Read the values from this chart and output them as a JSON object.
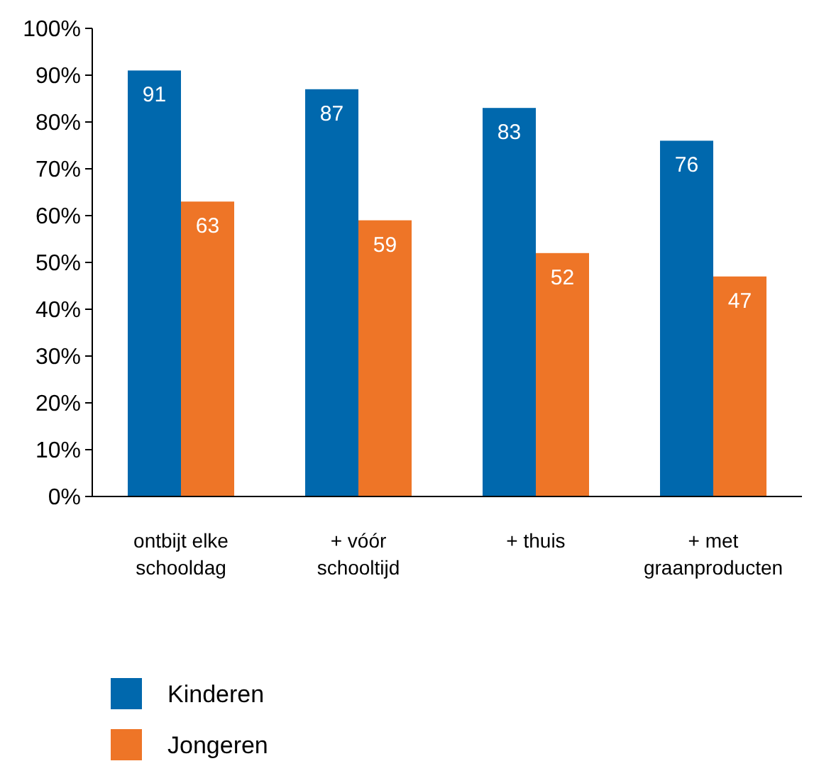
{
  "chart_data": {
    "type": "bar",
    "categories": [
      "ontbijt elke schooldag",
      "+ vóór schooltijd",
      "+ thuis",
      "+ met graanproducten"
    ],
    "series": [
      {
        "name": "Kinderen",
        "color": "#0068ad",
        "values": [
          91,
          87,
          83,
          76
        ]
      },
      {
        "name": "Jongeren",
        "color": "#ee7527",
        "values": [
          63,
          59,
          52,
          47
        ]
      }
    ],
    "ylim": [
      0,
      100
    ],
    "yticks": [
      {
        "value": 0,
        "label": "0%"
      },
      {
        "value": 10,
        "label": "10%"
      },
      {
        "value": 20,
        "label": "20%"
      },
      {
        "value": 30,
        "label": "30%"
      },
      {
        "value": 40,
        "label": "40%"
      },
      {
        "value": 50,
        "label": "50%"
      },
      {
        "value": 60,
        "label": "60%"
      },
      {
        "value": 70,
        "label": "70%"
      },
      {
        "value": 80,
        "label": "80%"
      },
      {
        "value": 90,
        "label": "90%"
      },
      {
        "value": 100,
        "label": "100%"
      }
    ],
    "data_labels": true,
    "grid": false,
    "legend": "bottom left"
  }
}
